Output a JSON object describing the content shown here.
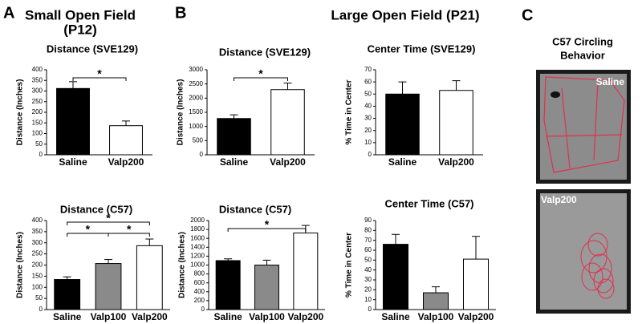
{
  "figure": {
    "panels": [
      {
        "letter": "A",
        "heading": [
          "Small Open Field",
          "(P12)"
        ]
      },
      {
        "letter": "B",
        "heading": [
          "Large Open Field (P21)"
        ]
      },
      {
        "letter": "C",
        "heading": [
          "C57 Circling",
          "Behavior"
        ],
        "photos": [
          "Saline",
          "Valp200"
        ]
      }
    ]
  },
  "chart_data": [
    {
      "type": "bar",
      "title": "Distance (SVE129)",
      "y_label": "Distance (Inches)",
      "categories": [
        "Saline",
        "Valp200"
      ],
      "values": [
        312,
        137
      ],
      "errors": [
        32,
        22
      ],
      "colors": [
        "#000000",
        "#ffffff"
      ],
      "ylim": [
        0,
        400
      ],
      "yticks": [
        0,
        50,
        100,
        150,
        200,
        250,
        300,
        350,
        400
      ],
      "significance": [
        {
          "label": "*",
          "pair": [
            0,
            1
          ]
        }
      ]
    },
    {
      "type": "bar",
      "title": "Distance (C57)",
      "y_label": "Distance (Inches)",
      "categories": [
        "Saline",
        "Valp100",
        "Valp200"
      ],
      "values": [
        135,
        207,
        287
      ],
      "errors": [
        12,
        18,
        30
      ],
      "colors": [
        "#000000",
        "#8a8a8a",
        "#ffffff"
      ],
      "ylim": [
        0,
        400
      ],
      "yticks": [
        0,
        50,
        100,
        150,
        200,
        250,
        300,
        350,
        400
      ],
      "significance": [
        {
          "label": "*",
          "pair": [
            0,
            2
          ]
        },
        {
          "label": "*",
          "pair": [
            0,
            1
          ]
        },
        {
          "label": "*",
          "pair": [
            1,
            2
          ]
        }
      ]
    },
    {
      "type": "bar",
      "title": "Distance (SVE129)",
      "y_label": "Distance (Inches)",
      "categories": [
        "Saline",
        "Valp200"
      ],
      "values": [
        1280,
        2300
      ],
      "errors": [
        130,
        230
      ],
      "colors": [
        "#000000",
        "#ffffff"
      ],
      "ylim": [
        0,
        3000
      ],
      "yticks": [
        0,
        500,
        1000,
        1500,
        2000,
        2500,
        3000
      ],
      "significance": [
        {
          "label": "*",
          "pair": [
            0,
            1
          ]
        }
      ]
    },
    {
      "type": "bar",
      "title": "Distance (C57)",
      "y_label": "Distance (Inches)",
      "categories": [
        "Saline",
        "Valp100",
        "Valp200"
      ],
      "values": [
        1100,
        1000,
        1720
      ],
      "errors": [
        40,
        110,
        170
      ],
      "colors": [
        "#000000",
        "#8a8a8a",
        "#ffffff"
      ],
      "ylim": [
        0,
        2000
      ],
      "yticks": [
        0,
        200,
        400,
        600,
        800,
        1000,
        1200,
        1400,
        1600,
        1800,
        2000
      ],
      "significance": [
        {
          "label": "*",
          "pair": [
            0,
            2
          ]
        }
      ]
    },
    {
      "type": "bar",
      "title": "Center Time (SVE129)",
      "y_label": "% Time in Center",
      "categories": [
        "Saline",
        "Valp200"
      ],
      "values": [
        50,
        53
      ],
      "errors": [
        10,
        8
      ],
      "colors": [
        "#000000",
        "#ffffff"
      ],
      "ylim": [
        0,
        70
      ],
      "yticks": [
        0,
        10,
        20,
        30,
        40,
        50,
        60,
        70
      ]
    },
    {
      "type": "bar",
      "title": "Center Time (C57)",
      "y_label": "% Time in Center",
      "categories": [
        "Saline",
        "Valp100",
        "Valp200"
      ],
      "values": [
        66,
        17,
        51
      ],
      "errors": [
        10,
        6,
        23
      ],
      "colors": [
        "#000000",
        "#8a8a8a",
        "#ffffff"
      ],
      "ylim": [
        0,
        90
      ],
      "yticks": [
        0,
        10,
        20,
        30,
        40,
        50,
        60,
        70,
        80,
        90
      ]
    }
  ]
}
